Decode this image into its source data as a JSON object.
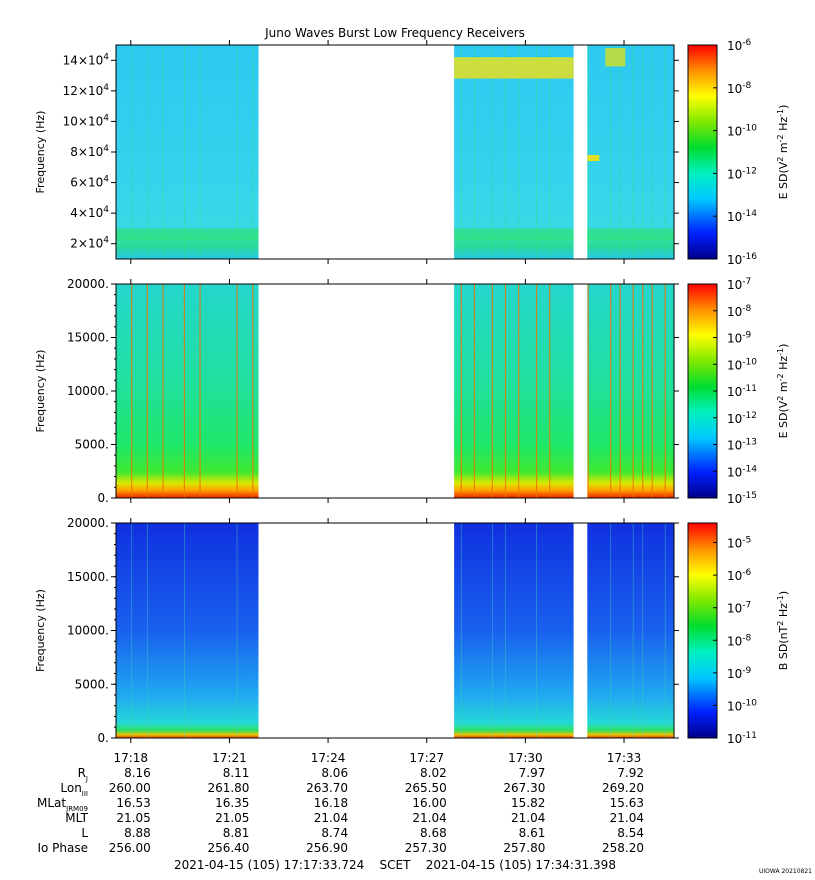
{
  "chart_data": {
    "type": "heatmap",
    "title": "Juno Waves Burst Low Frequency Receivers",
    "time_ticks": [
      "17:18",
      "17:21",
      "17:24",
      "17:27",
      "17:30",
      "17:33"
    ],
    "data_intervals": [
      {
        "start": "17:17:33",
        "end": "17:21:53"
      },
      {
        "start": "17:27:50",
        "end": "17:31:28"
      },
      {
        "start": "17:31:53",
        "end": "17:34:31"
      }
    ],
    "panels": [
      {
        "ylabel": "Frequency (Hz)",
        "ylim": [
          10000,
          150000
        ],
        "yticks": [
          {
            "value": 20000,
            "mantissa": "2×10",
            "exp": "4"
          },
          {
            "value": 40000,
            "mantissa": "4×10",
            "exp": "4"
          },
          {
            "value": 60000,
            "mantissa": "6×10",
            "exp": "4"
          },
          {
            "value": 80000,
            "mantissa": "8×10",
            "exp": "4"
          },
          {
            "value": 100000,
            "mantissa": "10×10",
            "exp": "4"
          },
          {
            "value": 120000,
            "mantissa": "12×10",
            "exp": "4"
          },
          {
            "value": 140000,
            "mantissa": "14×10",
            "exp": "4"
          }
        ],
        "colorbar": {
          "label_main": "E SD(V",
          "label_exp1": "2",
          "label_mid": " m",
          "label_exp2": "-2",
          "label_mid2": " Hz",
          "label_exp3": "-1",
          "label_end": ")",
          "range_exp": [
            -16,
            -6
          ],
          "labels": [
            {
              "base": "10",
              "exp": "-6",
              "value": -6
            },
            {
              "base": "10",
              "exp": "-8",
              "value": -8
            },
            {
              "base": "10",
              "exp": "-10",
              "value": -10
            },
            {
              "base": "10",
              "exp": "-12",
              "value": -12
            },
            {
              "base": "10",
              "exp": "-14",
              "value": -14
            },
            {
              "base": "10",
              "exp": "-16",
              "value": -16
            }
          ]
        }
      },
      {
        "ylabel": "Frequency (Hz)",
        "ylim": [
          0,
          20000
        ],
        "yticks": [
          {
            "value": 0,
            "label": "0."
          },
          {
            "value": 5000,
            "label": "5000."
          },
          {
            "value": 10000,
            "label": "10000."
          },
          {
            "value": 15000,
            "label": "15000."
          },
          {
            "value": 20000,
            "label": "20000."
          }
        ],
        "colorbar": {
          "label_main": "E SD(V",
          "label_exp1": "2",
          "label_mid": " m",
          "label_exp2": "-2",
          "label_mid2": " Hz",
          "label_exp3": "-1",
          "label_end": ")",
          "range_exp": [
            -15,
            -7
          ],
          "labels": [
            {
              "base": "10",
              "exp": "-7",
              "value": -7
            },
            {
              "base": "10",
              "exp": "-8",
              "value": -8
            },
            {
              "base": "10",
              "exp": "-9",
              "value": -9
            },
            {
              "base": "10",
              "exp": "-10",
              "value": -10
            },
            {
              "base": "10",
              "exp": "-11",
              "value": -11
            },
            {
              "base": "10",
              "exp": "-12",
              "value": -12
            },
            {
              "base": "10",
              "exp": "-13",
              "value": -13
            },
            {
              "base": "10",
              "exp": "-14",
              "value": -14
            },
            {
              "base": "10",
              "exp": "-15",
              "value": -15
            }
          ]
        }
      },
      {
        "ylabel": "Frequency (Hz)",
        "ylim": [
          0,
          20000
        ],
        "yticks": [
          {
            "value": 0,
            "label": "0."
          },
          {
            "value": 5000,
            "label": "5000."
          },
          {
            "value": 10000,
            "label": "10000."
          },
          {
            "value": 15000,
            "label": "15000."
          },
          {
            "value": 20000,
            "label": "20000."
          }
        ],
        "colorbar": {
          "label_main": "B SD(nT",
          "label_exp1": "2",
          "label_mid": " Hz",
          "label_exp2": "-1",
          "label_mid2": "",
          "label_exp3": "",
          "label_end": ")",
          "range_exp": [
            -11,
            -4.4
          ],
          "labels": [
            {
              "base": "10",
              "exp": "-5",
              "value": -5
            },
            {
              "base": "10",
              "exp": "-6",
              "value": -6
            },
            {
              "base": "10",
              "exp": "-7",
              "value": -7
            },
            {
              "base": "10",
              "exp": "-8",
              "value": -8
            },
            {
              "base": "10",
              "exp": "-9",
              "value": -9
            },
            {
              "base": "10",
              "exp": "-10",
              "value": -10
            },
            {
              "base": "10",
              "exp": "-11",
              "value": -11
            }
          ]
        }
      }
    ],
    "ephemeris": {
      "rows": [
        {
          "label": "R",
          "sub": "J",
          "values": [
            "8.16",
            "8.11",
            "8.06",
            "8.02",
            "7.97",
            "7.92"
          ]
        },
        {
          "label": "Lon",
          "sub": "III",
          "values": [
            "260.00",
            "261.80",
            "263.70",
            "265.50",
            "267.30",
            "269.20"
          ]
        },
        {
          "label": "MLat",
          "sub": "JRM09",
          "values": [
            "16.53",
            "16.35",
            "16.18",
            "16.00",
            "15.82",
            "15.63"
          ]
        },
        {
          "label": "MLT",
          "sub": "",
          "values": [
            "21.05",
            "21.05",
            "21.04",
            "21.04",
            "21.04",
            "21.04"
          ]
        },
        {
          "label": "L",
          "sub": "",
          "values": [
            "8.88",
            "8.81",
            "8.74",
            "8.68",
            "8.61",
            "8.54"
          ]
        },
        {
          "label": "Io Phase",
          "sub": "",
          "values": [
            "256.00",
            "256.40",
            "256.90",
            "257.30",
            "257.80",
            "258.20"
          ]
        }
      ]
    },
    "footer": "2021-04-15 (105) 17:17:33.724    SCET    2021-04-15 (105) 17:34:31.398",
    "credit": "UIOWA 20210821"
  }
}
